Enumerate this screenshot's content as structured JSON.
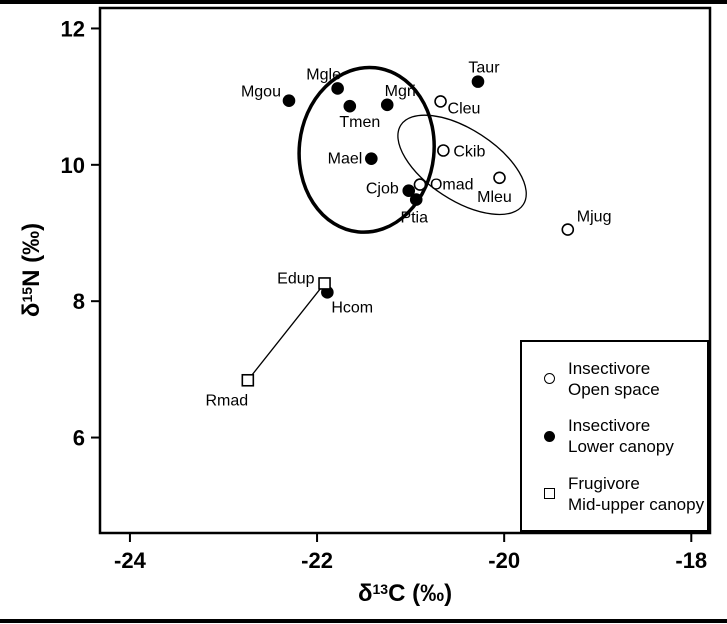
{
  "figure": {
    "legend": {
      "items": [
        {
          "marker": "open-circle",
          "line1": "Insectivore",
          "line2": "Open space"
        },
        {
          "marker": "filled-circle",
          "line1": "Insectivore",
          "line2": "Lower canopy"
        },
        {
          "marker": "open-square",
          "line1": "Frugivore",
          "line2": "Mid-upper canopy"
        }
      ]
    }
  },
  "chart_data": {
    "type": "scatter",
    "title": "",
    "xlabel": "δ13C (‰)",
    "ylabel": "δ15N (‰)",
    "xlabel_parts": {
      "delta": "δ",
      "sup": "13",
      "rest": "C (‰)"
    },
    "ylabel_parts": {
      "delta": "δ",
      "sup": "15",
      "rest": "N (‰)"
    },
    "xlim": [
      -24.32,
      -17.8
    ],
    "ylim": [
      4.6,
      12.3
    ],
    "x_ticks": [
      -24,
      -22,
      -20,
      -18
    ],
    "y_ticks": [
      6,
      8,
      10,
      12
    ],
    "grid": false,
    "legend_position": "lower right",
    "series": [
      {
        "name": "Insectivore Open space",
        "marker": "open-circle",
        "points": [
          {
            "label": "Cleu",
            "x": -20.68,
            "y": 10.93,
            "anchor": "start",
            "dx": 7,
            "dy": 12
          },
          {
            "label": "Ckib",
            "x": -20.65,
            "y": 10.21,
            "anchor": "start",
            "dx": 10,
            "dy": 6
          },
          {
            "label": "Omad",
            "x": -20.9,
            "y": 9.71,
            "anchor": "start",
            "dx": 10,
            "dy": 5
          },
          {
            "label": "Mleu",
            "x": -20.05,
            "y": 9.81,
            "anchor": "middle",
            "dx": -5,
            "dy": 24
          },
          {
            "label": "Mjug",
            "x": -19.32,
            "y": 9.05,
            "anchor": "start",
            "dx": 9,
            "dy": -8
          }
        ]
      },
      {
        "name": "Insectivore Lower canopy",
        "marker": "filled-circle",
        "points": [
          {
            "label": "Mgou",
            "x": -22.3,
            "y": 10.94,
            "anchor": "end",
            "dx": -8,
            "dy": -4
          },
          {
            "label": "Mgle",
            "x": -21.78,
            "y": 11.12,
            "anchor": "middle",
            "dx": -14,
            "dy": -9
          },
          {
            "label": "Tmen",
            "x": -21.65,
            "y": 10.86,
            "anchor": "middle",
            "dx": 10,
            "dy": 21
          },
          {
            "label": "Mgri",
            "x": -21.25,
            "y": 10.88,
            "anchor": "middle",
            "dx": 13,
            "dy": -9
          },
          {
            "label": "Mael",
            "x": -21.42,
            "y": 10.09,
            "anchor": "end",
            "dx": -9,
            "dy": 5
          },
          {
            "label": "Cjob",
            "x": -21.02,
            "y": 9.62,
            "anchor": "end",
            "dx": -10,
            "dy": 3
          },
          {
            "label": "Ptia",
            "x": -20.94,
            "y": 9.49,
            "anchor": "middle",
            "dx": -2,
            "dy": 23
          },
          {
            "label": "Taur",
            "x": -20.28,
            "y": 11.22,
            "anchor": "middle",
            "dx": 6,
            "dy": -9
          },
          {
            "label": "Hcom",
            "x": -21.89,
            "y": 8.13,
            "anchor": "start",
            "dx": 4,
            "dy": 20
          }
        ]
      },
      {
        "name": "Frugivore Mid-upper canopy",
        "marker": "open-square",
        "points": [
          {
            "label": "Edup",
            "x": -21.92,
            "y": 8.26,
            "anchor": "end",
            "dx": -10,
            "dy": 0
          },
          {
            "label": "Rmad",
            "x": -22.74,
            "y": 6.84,
            "anchor": "middle",
            "dx": -21,
            "dy": 25
          }
        ]
      }
    ],
    "ellipses": [
      {
        "name": "lower-canopy-cluster",
        "cx": -21.47,
        "cy": 10.22,
        "rx": 0.72,
        "ry": 1.21,
        "rotation_deg": 6,
        "stroke_width": 3.5
      },
      {
        "name": "open-space-cluster",
        "cx": -20.45,
        "cy": 10.0,
        "rx": 0.78,
        "ry": 0.52,
        "rotation_deg": 33,
        "stroke_width": 1.3
      }
    ],
    "connector_line": {
      "from": "Edup",
      "to": "Rmad"
    }
  }
}
